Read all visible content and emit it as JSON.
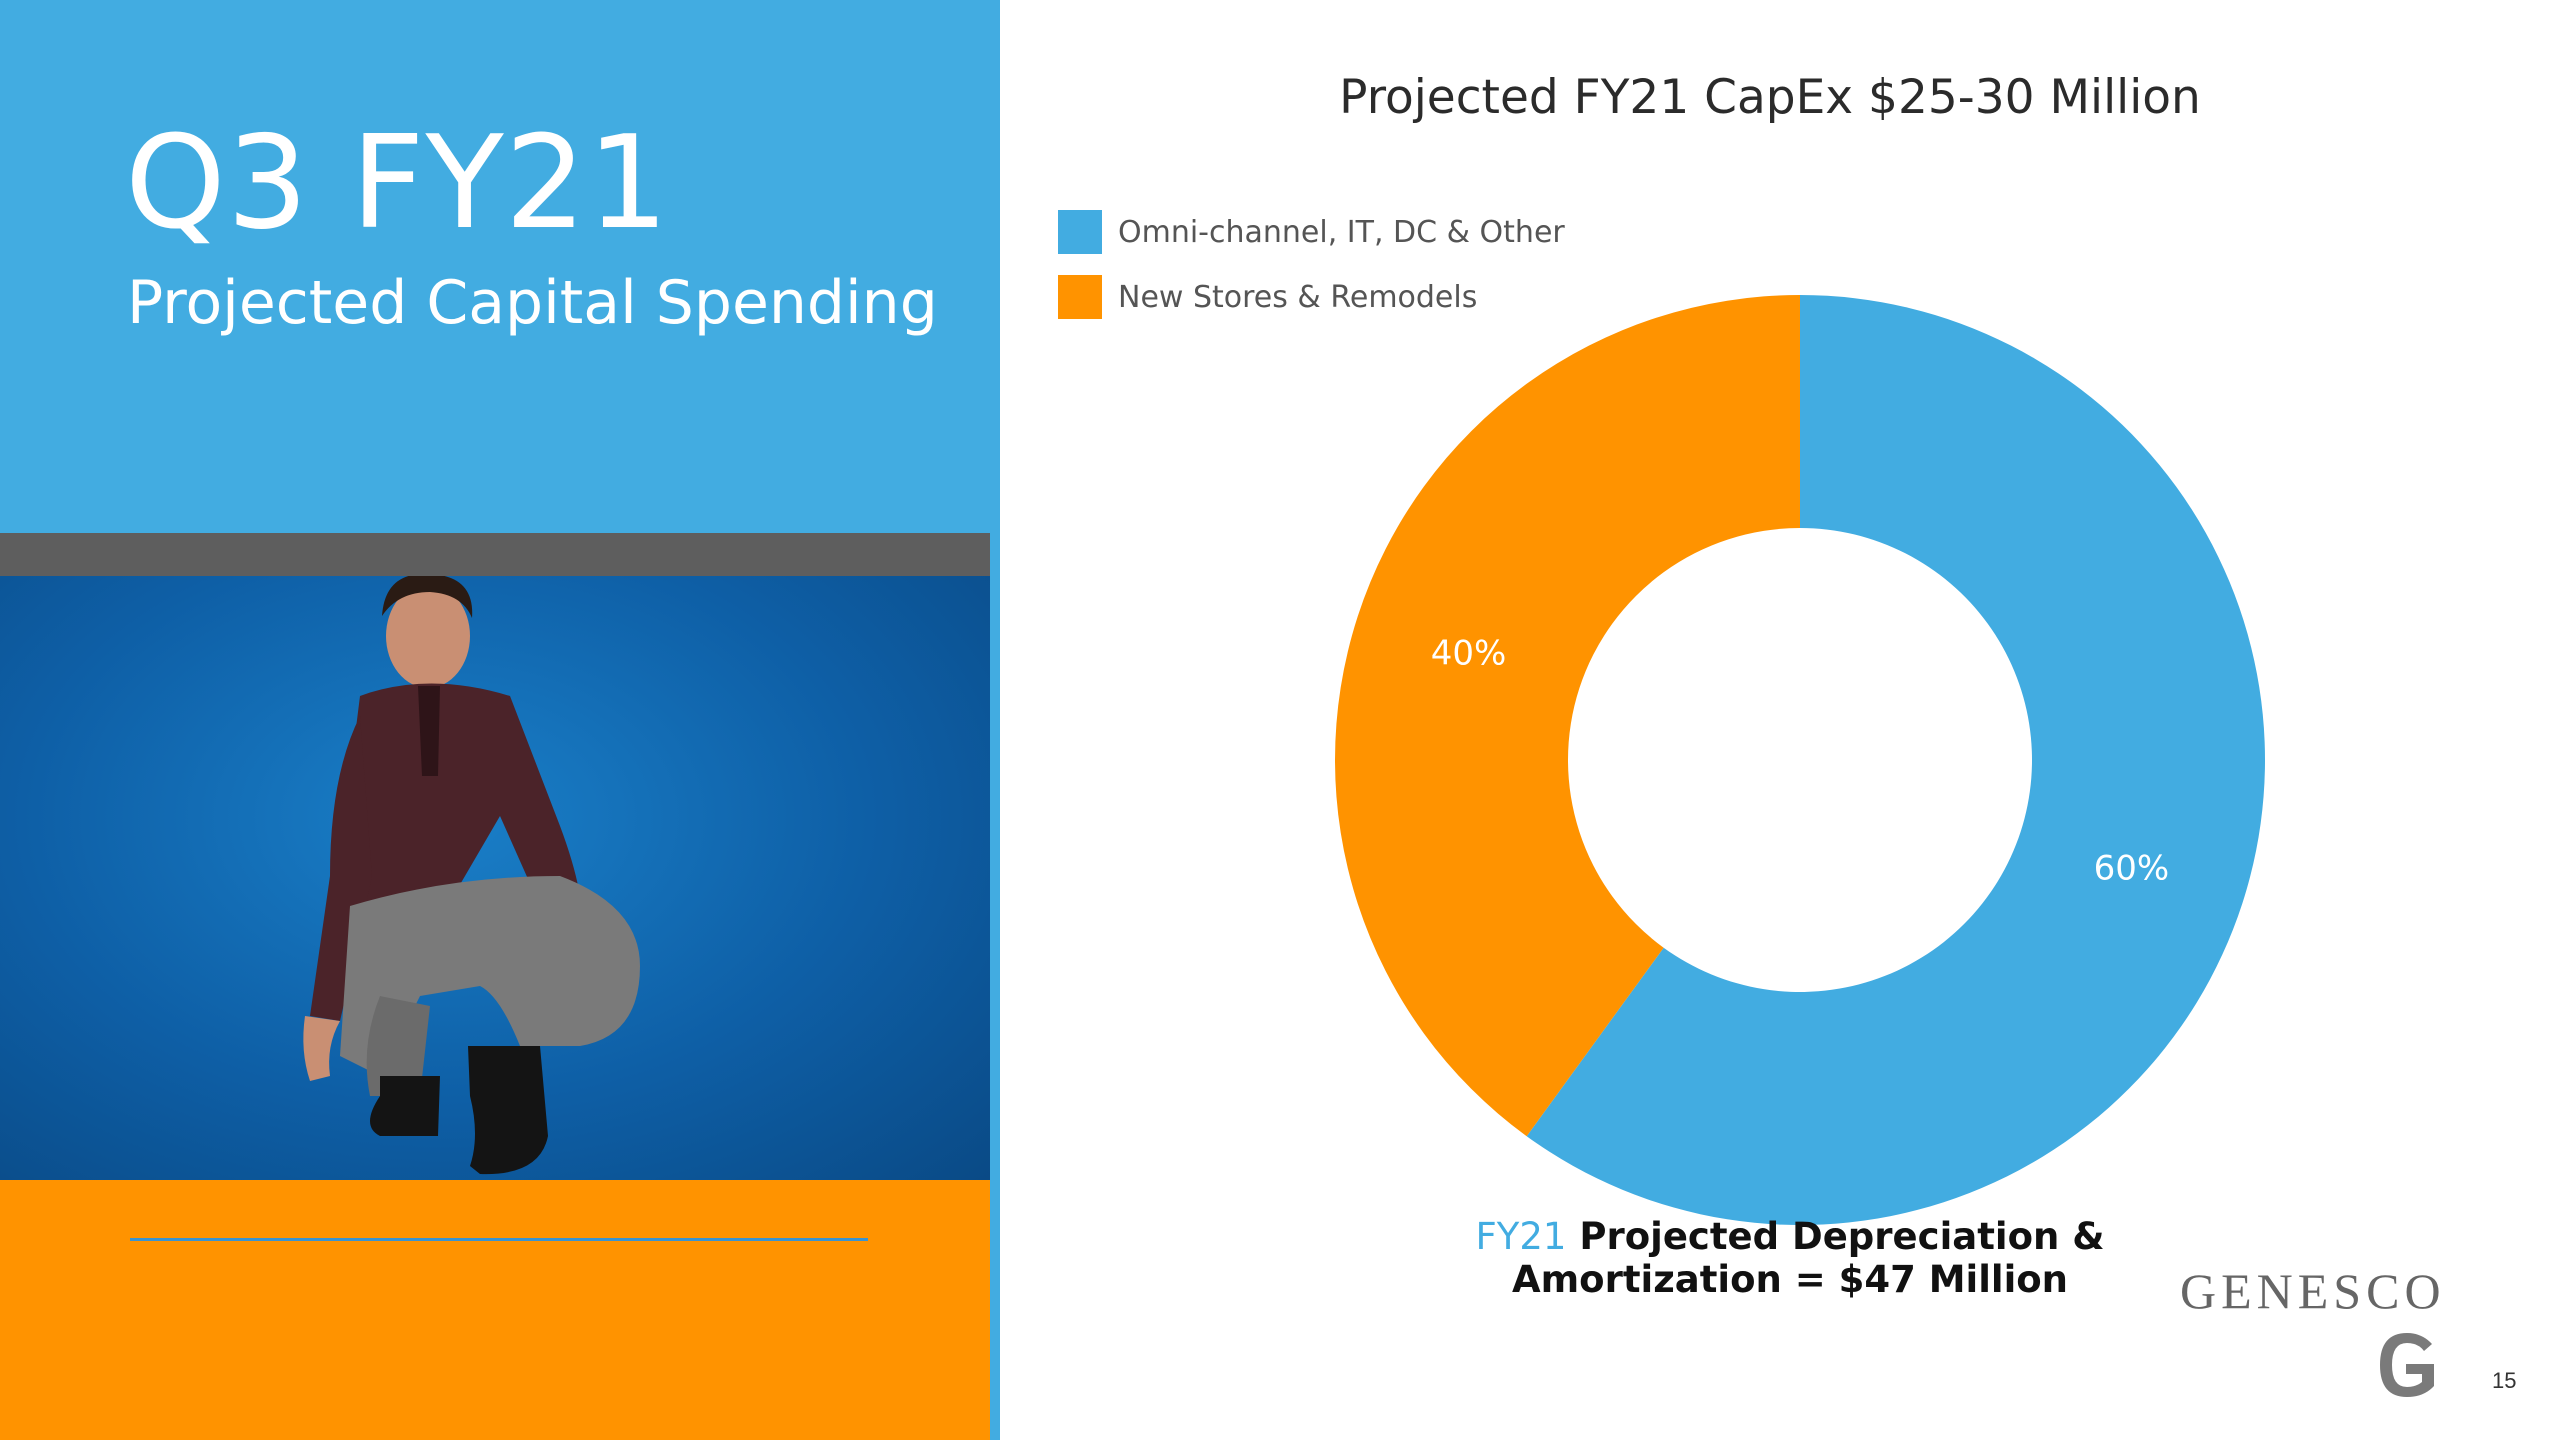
{
  "slide": {
    "heading": "Q3 FY21",
    "subheading": "Projected Capital Spending",
    "page_number": "15",
    "brand": "GENESCO"
  },
  "colors": {
    "blue": "#42ACE1",
    "orange": "#FF9300",
    "gray": "#5E5E5E"
  },
  "chart_data": {
    "type": "pie",
    "title": "Projected FY21 CapEx $25-30 Million",
    "legend_position": "top-left",
    "series": [
      {
        "name": "Omni-channel, IT, DC & Other",
        "value": 60,
        "label": "60%",
        "color": "#42ACE1"
      },
      {
        "name": "New Stores & Remodels",
        "value": 40,
        "label": "40%",
        "color": "#FF9300"
      }
    ]
  },
  "footnote": {
    "accent": "FY21",
    "line1": "Projected Depreciation &",
    "line2": "Amortization = $47 Million"
  }
}
